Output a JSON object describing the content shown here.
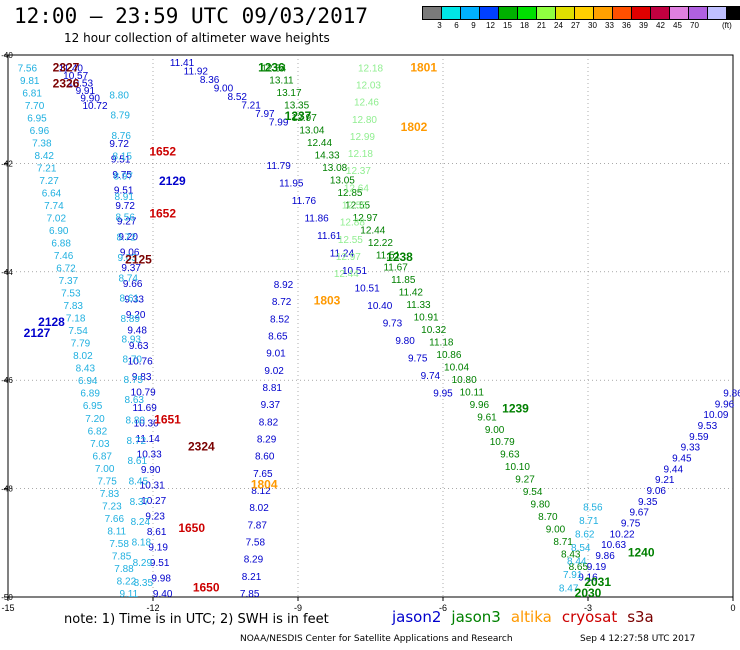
{
  "header": {
    "title": "12:00 – 23:59 UTC 09/03/2017",
    "subtitle": "12 hour collection of altimeter wave heights"
  },
  "colorbar": {
    "unit": "(ft)",
    "ticks": [
      "3",
      "6",
      "9",
      "12",
      "15",
      "18",
      "21",
      "24",
      "27",
      "30",
      "33",
      "36",
      "39",
      "42",
      "45",
      "70"
    ],
    "colors": [
      "#7a7a7a",
      "#00e6e6",
      "#00b0ff",
      "#0040ff",
      "#00b000",
      "#00e000",
      "#90ff40",
      "#e0e000",
      "#ffd000",
      "#ffa000",
      "#ff5000",
      "#e00000",
      "#c00040",
      "#e080e0",
      "#b060e0",
      "#c0c0ff",
      "#000000"
    ]
  },
  "map": {
    "lon_min": -15,
    "lon_max": 0,
    "lat_min": -50,
    "lat_max": -40,
    "x_ticks": [
      {
        "lon": -15,
        "label": "-15"
      },
      {
        "lon": -12,
        "label": "-12"
      },
      {
        "lon": -9,
        "label": "-9"
      },
      {
        "lon": -6,
        "label": "-6"
      },
      {
        "lon": -3,
        "label": "-3"
      },
      {
        "lon": 0,
        "label": "0"
      }
    ],
    "y_ticks": [
      {
        "lat": -40,
        "label": "-40"
      },
      {
        "lat": -42,
        "label": "-42"
      },
      {
        "lat": -44,
        "label": "-44"
      },
      {
        "lat": -46,
        "label": "-46"
      },
      {
        "lat": -48,
        "label": "-48"
      },
      {
        "lat": -50,
        "label": "-50"
      }
    ],
    "grid_color": "#777777",
    "satellite_colors": {
      "jason2": "#0000cc",
      "jason3": "#008000",
      "altika": "#ff9900",
      "cryosat": "#cc0000",
      "s3a": "#7a0000"
    },
    "time_labels": [
      {
        "text": "2327",
        "lon": -13.8,
        "lat": -40.3,
        "sat": "s3a"
      },
      {
        "text": "2326",
        "lon": -13.8,
        "lat": -40.6,
        "sat": "s3a"
      },
      {
        "text": "1236",
        "lon": -9.55,
        "lat": -40.3,
        "sat": "jason3"
      },
      {
        "text": "1801",
        "lon": -6.4,
        "lat": -40.3,
        "sat": "altika"
      },
      {
        "text": "1237",
        "lon": -9.0,
        "lat": -41.2,
        "sat": "jason3"
      },
      {
        "text": "1802",
        "lon": -6.6,
        "lat": -41.4,
        "sat": "altika"
      },
      {
        "text": "1652",
        "lon": -11.8,
        "lat": -41.85,
        "sat": "cryosat"
      },
      {
        "text": "2129",
        "lon": -11.6,
        "lat": -42.4,
        "sat": "jason2"
      },
      {
        "text": "1652",
        "lon": -11.8,
        "lat": -43.0,
        "sat": "cryosat"
      },
      {
        "text": "2125",
        "lon": -12.3,
        "lat": -43.85,
        "sat": "s3a"
      },
      {
        "text": "1238",
        "lon": -6.9,
        "lat": -43.8,
        "sat": "jason3"
      },
      {
        "text": "1803",
        "lon": -8.4,
        "lat": -44.6,
        "sat": "altika"
      },
      {
        "text": "2128",
        "lon": -14.1,
        "lat": -45.0,
        "sat": "jason2"
      },
      {
        "text": "2127",
        "lon": -14.4,
        "lat": -45.2,
        "sat": "jason2"
      },
      {
        "text": "1239",
        "lon": -4.5,
        "lat": -46.6,
        "sat": "jason3"
      },
      {
        "text": "1651",
        "lon": -11.7,
        "lat": -46.8,
        "sat": "cryosat"
      },
      {
        "text": "2324",
        "lon": -11.0,
        "lat": -47.3,
        "sat": "s3a"
      },
      {
        "text": "1804",
        "lon": -9.7,
        "lat": -48.0,
        "sat": "altika"
      },
      {
        "text": "1650",
        "lon": -11.2,
        "lat": -48.8,
        "sat": "cryosat"
      },
      {
        "text": "1240",
        "lon": -1.9,
        "lat": -49.25,
        "sat": "jason3"
      },
      {
        "text": "2031",
        "lon": -2.8,
        "lat": -49.8,
        "sat": "jason3"
      },
      {
        "text": "2030",
        "lon": -3.0,
        "lat": -50.0,
        "sat": "jason3"
      },
      {
        "text": "1650",
        "lon": -10.9,
        "lat": -49.9,
        "sat": "cryosat"
      }
    ],
    "tracks": [
      {
        "sat": "jason3",
        "color": "#008000",
        "lon0": -9.5,
        "lat0": -40.3,
        "lon1": -3.2,
        "lat1": -49.5,
        "values": [
          "12.54",
          "13.11",
          "13.17",
          "13.35",
          "12.97",
          "13.04",
          "12.44",
          "14.33",
          "13.08",
          "13.05",
          "12.85",
          "12.55",
          "12.97",
          "12.44",
          "12.22",
          "11.51",
          "11.67",
          "11.85",
          "11.42",
          "11.33",
          "10.91",
          "10.32",
          "11.18",
          "10.86",
          "10.04",
          "10.80",
          "10.11",
          "9.96",
          "9.61",
          "9.00",
          "10.79",
          "9.63",
          "10.10",
          "9.27",
          "9.54",
          "9.80",
          "8.70",
          "9.00",
          "8.71",
          "8.43",
          "8.65"
        ]
      },
      {
        "sat": "jason2",
        "color": "#0000cc",
        "lon0": -9.4,
        "lat0": -42.1,
        "lon1": -6.0,
        "lat1": -46.3,
        "values": [
          "11.79",
          "11.95",
          "11.76",
          "11.86",
          "11.61",
          "11.24",
          "10.51",
          "10.51",
          "10.40",
          "9.73",
          "9.80",
          "9.75",
          "9.74",
          "9.95"
        ]
      },
      {
        "sat": "altika",
        "color": "#90ee90",
        "lon0": -7.5,
        "lat0": -40.3,
        "lon1": -8.0,
        "lat1": -44.1,
        "values": [
          "12.18",
          "12.03",
          "12.46",
          "12.80",
          "12.99",
          "12.18",
          "12.37",
          "12.64",
          "12.55",
          "12.88",
          "12.55",
          "12.97",
          "12.44"
        ]
      },
      {
        "sat": "jason2",
        "color": "#0000cc",
        "lon0": -11.4,
        "lat0": -40.2,
        "lon1": -9.4,
        "lat1": -41.3,
        "values": [
          "11.41",
          "11.92",
          "8.36",
          "9.00",
          "8.52",
          "7.21",
          "7.97",
          "7.99"
        ]
      },
      {
        "sat": "jason2",
        "color": "#0000cc",
        "lon0": -13.7,
        "lat0": -40.3,
        "lon1": -13.2,
        "lat1": -41.0,
        "values": [
          "11.40",
          "10.57",
          "10.53",
          "9.91",
          "9.90",
          "10.72"
        ]
      },
      {
        "sat": "jason2",
        "color": "#0000cc",
        "lon0": -9.3,
        "lat0": -44.3,
        "lon1": -10.0,
        "lat1": -50.0,
        "values": [
          "8.92",
          "8.72",
          "8.52",
          "8.65",
          "9.01",
          "9.02",
          "8.81",
          "9.37",
          "8.82",
          "8.29",
          "8.60",
          "7.65",
          "8.12",
          "8.02",
          "7.87",
          "7.58",
          "8.29",
          "8.21",
          "7.85"
        ]
      },
      {
        "sat": "jason2",
        "color": "#0000cc",
        "lon0": -12.7,
        "lat0": -41.7,
        "lon1": -11.8,
        "lat1": -50.0,
        "values": [
          "9.72",
          "9.51",
          "9.75",
          "9.51",
          "9.72",
          "9.27",
          "9.20",
          "9.06",
          "9.37",
          "9.66",
          "9.33",
          "9.20",
          "9.48",
          "9.63",
          "10.76",
          "9.83",
          "10.79",
          "11.69",
          "10.30",
          "11.14",
          "10.33",
          "9.90",
          "10.31",
          "10.27",
          "9.23",
          "8.61",
          "9.19",
          "9.51",
          "9.98",
          "9.40"
        ]
      },
      {
        "sat": "jason2",
        "color": "#0000cc",
        "lon0": -3.0,
        "lat0": -49.7,
        "lon1": 0.0,
        "lat1": -46.3,
        "values": [
          "9.16",
          "9.19",
          "9.86",
          "10.63",
          "10.22",
          "9.75",
          "9.67",
          "9.35",
          "9.06",
          "9.21",
          "9.44",
          "9.45",
          "9.33",
          "9.59",
          "9.53",
          "10.09",
          "9.96",
          "9.86"
        ]
      },
      {
        "sat": "altika",
        "color": "#20b0e0",
        "lon0": -14.6,
        "lat0": -40.3,
        "lon1": -12.5,
        "lat1": -50.0,
        "values": [
          "7.56",
          "9.81",
          "6.81",
          "7.70",
          "6.95",
          "6.96",
          "7.38",
          "8.42",
          "7.21",
          "7.27",
          "6.64",
          "7.74",
          "7.02",
          "6.90",
          "6.88",
          "7.46",
          "6.72",
          "7.37",
          "7.53",
          "7.83",
          "7.18",
          "7.54",
          "7.79",
          "8.02",
          "8.43",
          "6.94",
          "6.89",
          "6.95",
          "7.20",
          "6.82",
          "7.03",
          "6.87",
          "7.00",
          "7.75",
          "7.83",
          "7.23",
          "7.66",
          "8.11",
          "7.58",
          "7.85",
          "7.88",
          "8.22",
          "9.11"
        ]
      },
      {
        "sat": "altika",
        "color": "#20b0e0",
        "lon0": -12.7,
        "lat0": -40.8,
        "lon1": -12.2,
        "lat1": -49.8,
        "values": [
          "8.80",
          "8.79",
          "8.76",
          "8.15",
          "8.97",
          "8.91",
          "8.56",
          "8.72",
          "9.03",
          "8.74",
          "8.61",
          "8.89",
          "8.93",
          "8.70",
          "8.75",
          "8.63",
          "8.80",
          "8.72",
          "8.61",
          "8.45",
          "8.37",
          "8.24",
          "8.18",
          "8.29",
          "8.35"
        ]
      },
      {
        "sat": "altika",
        "color": "#20b0e0",
        "lon0": -3.4,
        "lat0": -49.9,
        "lon1": -2.9,
        "lat1": -48.4,
        "values": [
          "8.47",
          "7.91",
          "8.44",
          "8.54",
          "8.62",
          "8.71",
          "8.56"
        ]
      }
    ]
  },
  "footer": {
    "note": "note:  1) Time is in UTC;  2) SWH is in feet",
    "sats": [
      {
        "name": "jason2",
        "color": "#0000cc"
      },
      {
        "name": "jason3",
        "color": "#008000"
      },
      {
        "name": "altika",
        "color": "#ff9900"
      },
      {
        "name": "cryosat",
        "color": "#cc0000"
      },
      {
        "name": "s3a",
        "color": "#7a0000"
      }
    ],
    "credit": "NOAA/NESDIS Center for Satellite Applications and Research",
    "timestamp": "Sep  4 12:27:58 UTC 2017"
  }
}
